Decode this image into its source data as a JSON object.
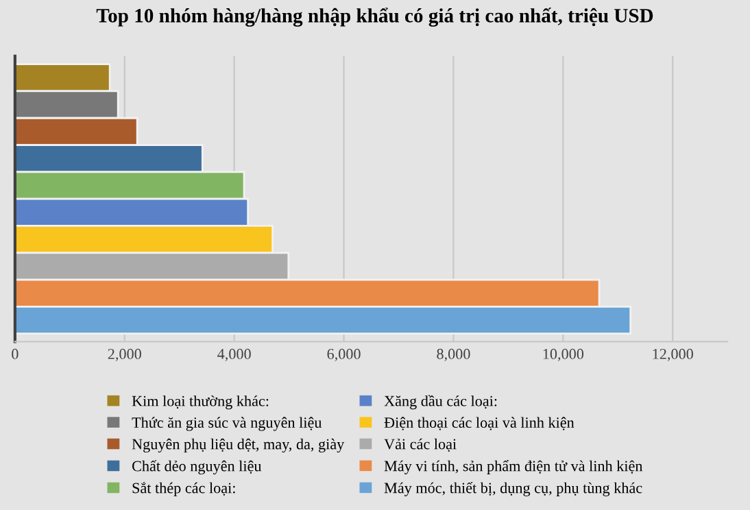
{
  "chart_data": {
    "type": "bar",
    "orientation": "horizontal",
    "title": "Top 10 nhóm hàng/hàng nhập khẩu có giá trị cao nhất, triệu USD",
    "categories": [
      null,
      null,
      null,
      null,
      null,
      null,
      null,
      null,
      null,
      null
    ],
    "series": [
      {
        "name": "Kim loại thường khác:",
        "color": "#a58322",
        "values": [
          1730,
          null,
          null,
          null,
          null,
          null,
          null,
          null,
          null,
          null
        ]
      },
      {
        "name": "Thức ăn gia súc và nguyên liệu",
        "color": "#787878",
        "values": [
          null,
          1880,
          null,
          null,
          null,
          null,
          null,
          null,
          null,
          null
        ]
      },
      {
        "name": "Nguyên phụ liệu dệt, may, da, giày",
        "color": "#a95b2c",
        "values": [
          null,
          null,
          2230,
          null,
          null,
          null,
          null,
          null,
          null,
          null
        ]
      },
      {
        "name": "Chất dẻo nguyên liệu",
        "color": "#3e6f9c",
        "values": [
          null,
          null,
          null,
          3420,
          null,
          null,
          null,
          null,
          null,
          null
        ]
      },
      {
        "name": "Sắt thép các loại:",
        "color": "#82b562",
        "values": [
          null,
          null,
          null,
          null,
          4180,
          null,
          null,
          null,
          null,
          null
        ]
      },
      {
        "name": "Xăng dầu các loại:",
        "color": "#5b82c8",
        "values": [
          null,
          null,
          null,
          null,
          null,
          4250,
          null,
          null,
          null,
          null
        ]
      },
      {
        "name": "Điện thoại các loại và linh kiện",
        "color": "#fac41f",
        "values": [
          null,
          null,
          null,
          null,
          null,
          null,
          4700,
          null,
          null,
          null
        ]
      },
      {
        "name": "Vải các loại",
        "color": "#ababab",
        "values": [
          null,
          null,
          null,
          null,
          null,
          null,
          null,
          4990,
          null,
          null
        ]
      },
      {
        "name": "Máy vi tính, sản phẩm điện tử và linh kiện",
        "color": "#ea8a48",
        "values": [
          null,
          null,
          null,
          null,
          null,
          null,
          null,
          null,
          10660,
          null
        ]
      },
      {
        "name": "Máy móc, thiết bị, dụng cụ, phụ tùng khác",
        "color": "#6aa3d6",
        "values": [
          null,
          null,
          null,
          null,
          null,
          null,
          null,
          null,
          null,
          11230
        ]
      }
    ],
    "xlim": [
      0,
      13000
    ],
    "xticks": [
      {
        "value": 0,
        "label": "0"
      },
      {
        "value": 2000,
        "label": "2,000"
      },
      {
        "value": 4000,
        "label": "4,000"
      },
      {
        "value": 6000,
        "label": "6,000"
      },
      {
        "value": 8000,
        "label": "8,000"
      },
      {
        "value": 10000,
        "label": "10,000"
      },
      {
        "value": 12000,
        "label": "12,000"
      }
    ],
    "tick_labels": "x",
    "grid": "x",
    "legend": "bottom"
  }
}
